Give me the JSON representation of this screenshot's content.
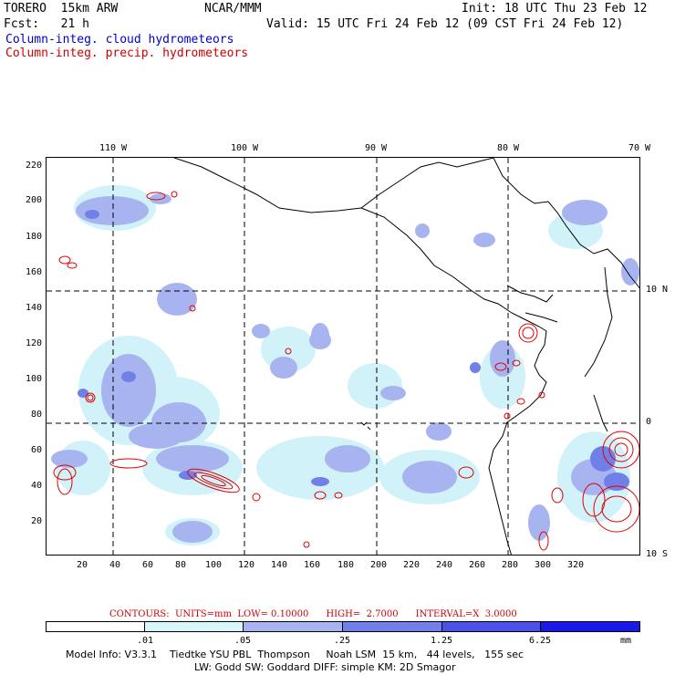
{
  "header": {
    "model": "TORERO  15km ARW",
    "org": "NCAR/MMM",
    "init": "Init: 18 UTC Thu 23 Feb 12",
    "fcst": "Fcst:   21 h",
    "valid": "Valid: 15 UTC Fri 24 Feb 12 (09 CST Fri 24 Feb 12)",
    "field1": "Column-integ. cloud hydrometeors",
    "field2": "Column-integ. precip. hydrometeors"
  },
  "map": {
    "top_lon_labels": [
      "110 W",
      "100 W",
      "90 W",
      "80 W",
      "70 W"
    ],
    "right_lat_labels": [
      "10 N",
      "0",
      "10 S"
    ],
    "y_ticks": [
      "220",
      "200",
      "180",
      "160",
      "140",
      "120",
      "100",
      "80",
      "60",
      "40",
      "20"
    ],
    "x_ticks": [
      "20",
      "40",
      "60",
      "80",
      "100",
      "120",
      "140",
      "160",
      "180",
      "200",
      "220",
      "240",
      "260",
      "280",
      "300",
      "320"
    ],
    "colors": {
      "cloud_light": "#c8f0f8",
      "cloud_mid": "#a8b4f0",
      "cloud_dark": "#7080e8",
      "precip_contour": "#e00000",
      "coastline": "#000000"
    }
  },
  "legend": {
    "contours_text": "CONTOURS:  UNITS=mm  LOW= 0.10000      HIGH=  2.7000      INTERVAL=X  3.0000",
    "scale_labels": [
      ".01",
      ".05",
      ".25",
      "1.25",
      "6.25",
      "mm"
    ],
    "scale_colors": [
      "#ffffff",
      "#d8f6f8",
      "#a8b4f0",
      "#7080e8",
      "#4a50e8",
      "#1a1ae8"
    ]
  },
  "footer": {
    "line1": "Model Info: V3.3.1    Tiedtke YSU PBL  Thompson     Noah LSM  15 km,   44 levels,   155 sec",
    "line2": "LW: Godd SW: Goddard DIFF: simple KM: 2D Smagor"
  }
}
